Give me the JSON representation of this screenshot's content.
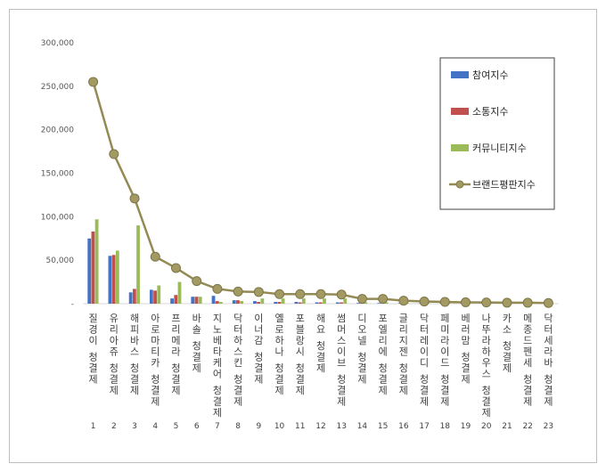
{
  "chart_data": {
    "type": "bar",
    "title": "",
    "xlabel": "",
    "ylabel": "",
    "ylim": [
      0,
      300000
    ],
    "yticks": [
      "-",
      "50,000",
      "100,000",
      "150,000",
      "200,000",
      "250,000",
      "300,000"
    ],
    "grid": false,
    "legend_position": "top-right",
    "ranks": [
      "1",
      "2",
      "3",
      "4",
      "5",
      "6",
      "7",
      "8",
      "9",
      "10",
      "11",
      "12",
      "13",
      "14",
      "15",
      "16",
      "17",
      "18",
      "19",
      "20",
      "21",
      "22",
      "23"
    ],
    "categories": [
      "질경이 청결제",
      "유리아쥬 청결제",
      "해피바스 청결제",
      "아로마티카 청결제",
      "프리메라 청결제",
      "바솔 청결제",
      "지노베타케어 청결제",
      "닥터하스킨 청결제",
      "이너감 청결제",
      "옐로하나 청결제",
      "포블랑시 청결제",
      "해요 청결제",
      "썸머스이브 청결제",
      "디오넬 청결제",
      "포엘리에 청결제",
      "글리지젠 청결제",
      "닥터레이디 청결제",
      "페미라이드 청결제",
      "베러맘 청결제",
      "나뚜라하우스 청결제",
      "카소 청결제",
      "메종드펜세 청결제",
      "닥터세라바 청결제"
    ],
    "series": [
      {
        "name": "참여지수",
        "type": "bar",
        "color": "#4472c4",
        "values": [
          75000,
          55000,
          13000,
          16000,
          6000,
          8000,
          9000,
          4000,
          3000,
          2000,
          2000,
          1500,
          1500,
          800,
          700,
          600,
          500,
          500,
          400,
          400,
          300,
          300,
          200
        ]
      },
      {
        "name": "소통지수",
        "type": "bar",
        "color": "#c0504d",
        "values": [
          83000,
          56000,
          17000,
          15000,
          10000,
          8000,
          3000,
          4000,
          2000,
          2000,
          1500,
          1500,
          1500,
          800,
          700,
          600,
          500,
          500,
          400,
          400,
          300,
          300,
          200
        ]
      },
      {
        "name": "커뮤니티지수",
        "type": "bar",
        "color": "#9bbb59",
        "values": [
          97000,
          61000,
          90000,
          21000,
          25000,
          8000,
          2000,
          3000,
          6000,
          6000,
          6000,
          6000,
          6000,
          1500,
          1500,
          1000,
          1000,
          800,
          700,
          600,
          500,
          500,
          400
        ]
      },
      {
        "name": "브랜드평판지수",
        "type": "line",
        "color": "#948a54",
        "values": [
          255000,
          172000,
          121000,
          54000,
          41000,
          26000,
          17000,
          14000,
          13500,
          11000,
          11000,
          11000,
          10500,
          5500,
          5500,
          3500,
          2500,
          2000,
          1600,
          1400,
          1100,
          1100,
          800
        ]
      }
    ]
  }
}
